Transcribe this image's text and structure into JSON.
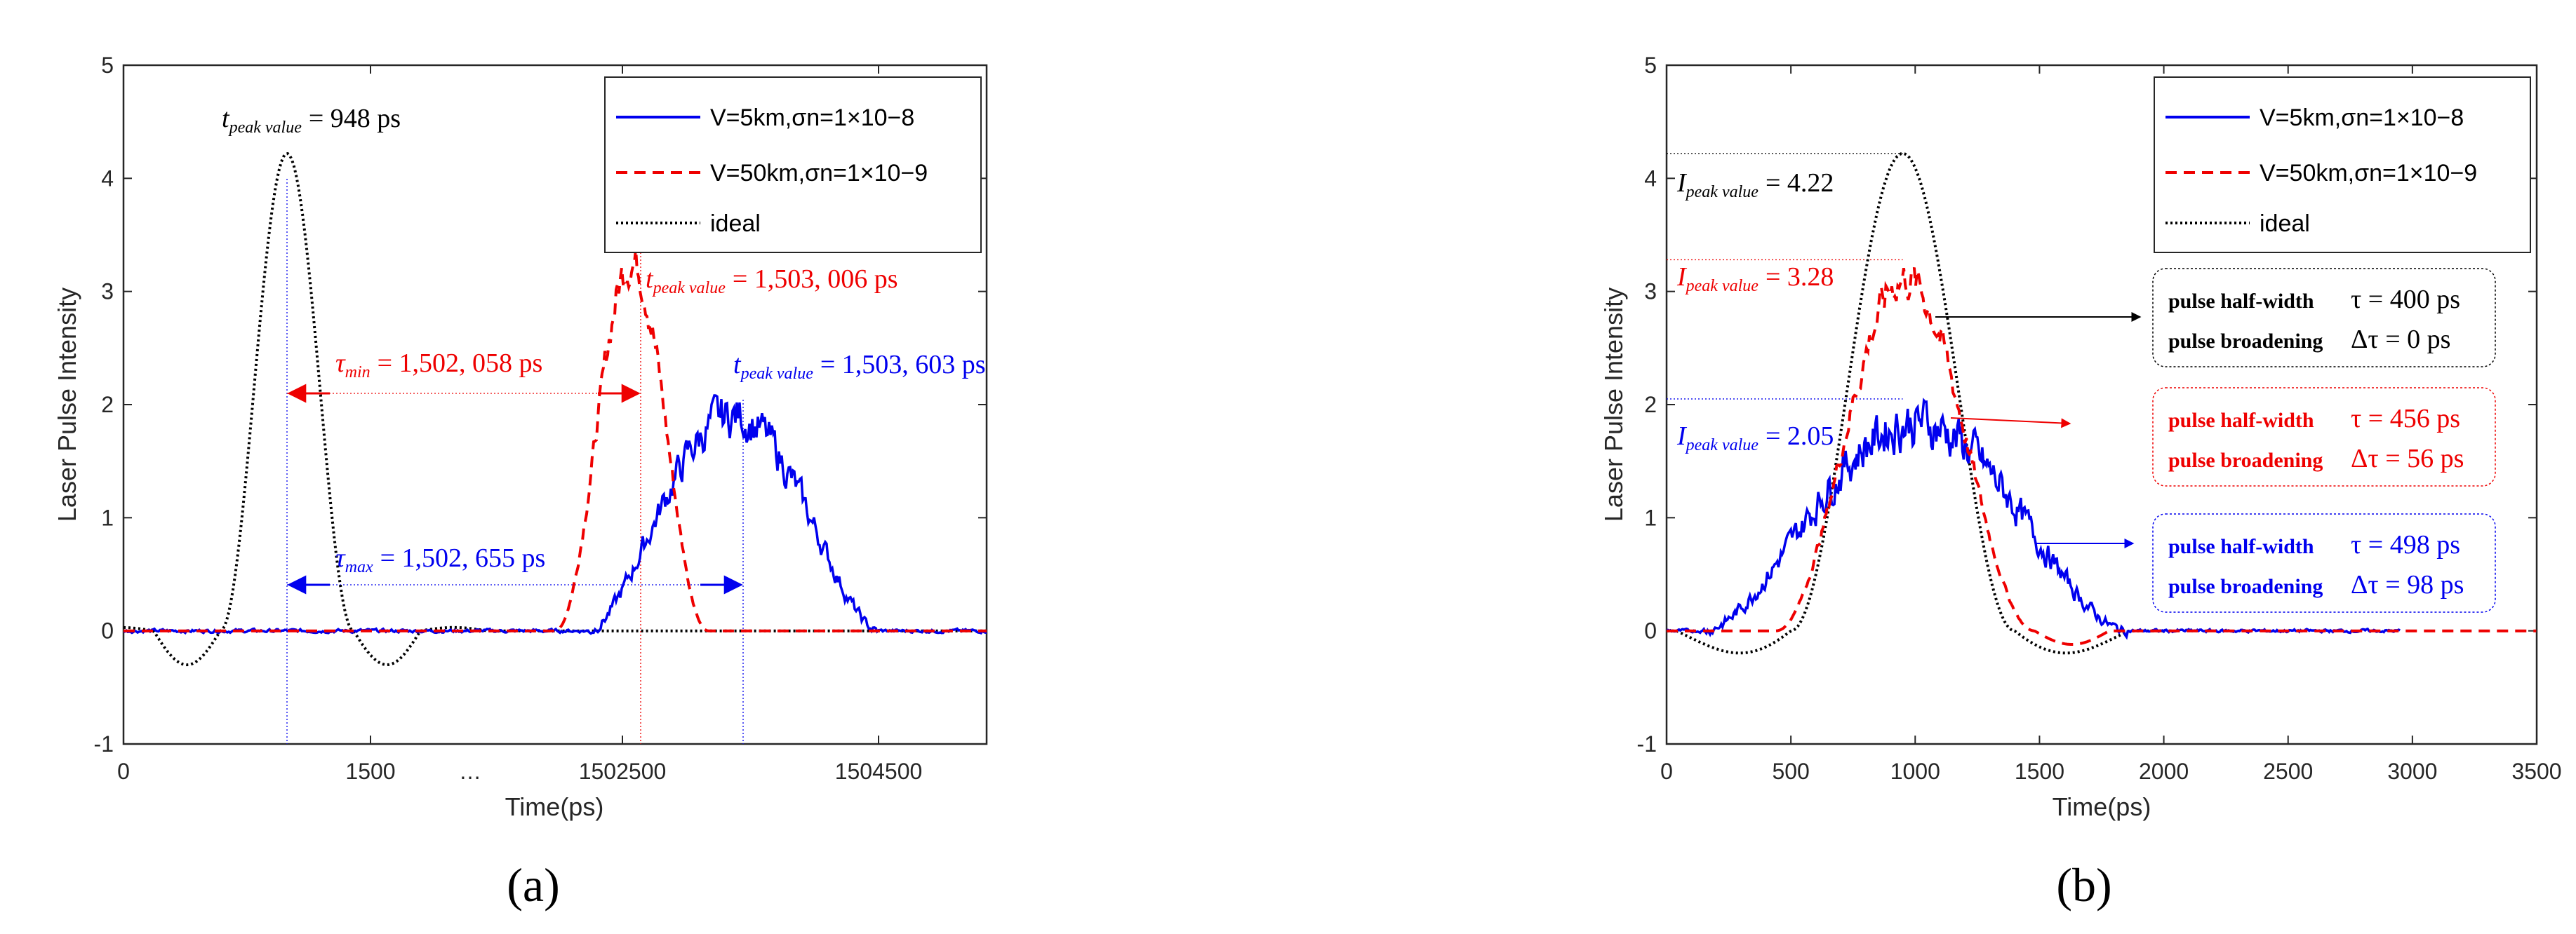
{
  "colors": {
    "blue": "#0000ee",
    "red": "#ee0000",
    "black": "#000000",
    "axis": "#262626"
  },
  "chart_data": [
    {
      "type": "line",
      "panel_label": "(a)",
      "title": "",
      "xlabel": "Time(ps)",
      "ylabel": "Laser Pulse Intensity",
      "ylim": [
        -1,
        5
      ],
      "yticks": [
        "-1",
        "0",
        "1",
        "2",
        "3",
        "4",
        "5"
      ],
      "xticks": [
        "0",
        "1500",
        "1502500",
        "1504500"
      ],
      "axis_break": "…",
      "note": "broken x-axis: section 0-1500 ps, then 1502500-1504500 ps",
      "legend": {
        "position": "top-right",
        "entries": [
          "V=5km,σn=1×10−8",
          "V=50km,σn=1×10−9",
          "ideal"
        ]
      },
      "series": [
        {
          "name": "V=5km,σn=1×10−8",
          "color": "#0000ee",
          "style": "solid",
          "peak_value": 2.05,
          "peak_time_ps": 1503603
        },
        {
          "name": "V=50km,σn=1×10−9",
          "color": "#ee0000",
          "style": "dashed",
          "peak_value": 3.28,
          "peak_time_ps": 1503006
        },
        {
          "name": "ideal",
          "color": "#000000",
          "style": "dotted",
          "peak_value": 4.22,
          "peak_time_ps": 948
        }
      ],
      "annotations": {
        "ideal_peak": {
          "var": "t",
          "sub": "peak value",
          "value": "= 948 ps"
        },
        "red_peak": {
          "var": "t",
          "sub": "peak value",
          "value": "= 1,503, 006 ps"
        },
        "blue_peak": {
          "var": "t",
          "sub": "peak value",
          "value": "= 1,503, 603 ps"
        },
        "tau_min": {
          "var": "τ",
          "sub": "min",
          "value": "= 1,502, 058 ps"
        },
        "tau_max": {
          "var": "τ",
          "sub": "max",
          "value": "= 1,502, 655 ps"
        }
      }
    },
    {
      "type": "line",
      "panel_label": "(b)",
      "title": "",
      "xlabel": "Time(ps)",
      "ylabel": "Laser Pulse Intensity",
      "xlim": [
        0,
        3500
      ],
      "ylim": [
        -1,
        5
      ],
      "yticks": [
        "-1",
        "0",
        "1",
        "2",
        "3",
        "4",
        "5"
      ],
      "xticks": [
        "0",
        "500",
        "1000",
        "1500",
        "2000",
        "2500",
        "3000",
        "3500"
      ],
      "legend": {
        "position": "top-right",
        "entries": [
          "V=5km,σn=1×10−8",
          "V=50km,σn=1×10−9",
          "ideal"
        ]
      },
      "series": [
        {
          "name": "V=5km,σn=1×10−8",
          "color": "#0000ee",
          "style": "solid",
          "peak_value": 2.05,
          "half_width_ps": 498,
          "broadening_ps": 98
        },
        {
          "name": "V=50km,σn=1×10−9",
          "color": "#ee0000",
          "style": "dashed",
          "peak_value": 3.28,
          "half_width_ps": 456,
          "broadening_ps": 56
        },
        {
          "name": "ideal",
          "color": "#000000",
          "style": "dotted",
          "peak_value": 4.22,
          "half_width_ps": 400,
          "broadening_ps": 0
        }
      ],
      "annotations": {
        "ideal_peak": {
          "var": "I",
          "sub": "peak value",
          "value": "= 4.22"
        },
        "red_peak": {
          "var": "I",
          "sub": "peak value",
          "value": "= 3.28"
        },
        "blue_peak": {
          "var": "I",
          "sub": "peak value",
          "value": "= 2.05"
        }
      },
      "boxes": [
        {
          "color": "#000000",
          "hw_label": "pulse half-width",
          "hw_value": "τ = 400 ps",
          "br_label": "pulse broadening",
          "br_value": "Δτ = 0 ps"
        },
        {
          "color": "#ee0000",
          "hw_label": "pulse half-width",
          "hw_value": "τ = 456 ps",
          "br_label": "pulse broadening",
          "br_value": "Δτ = 56 ps"
        },
        {
          "color": "#0000ee",
          "hw_label": "pulse half-width",
          "hw_value": "τ = 498 ps",
          "br_label": "pulse broadening",
          "br_value": "Δτ = 98 ps"
        }
      ]
    }
  ]
}
